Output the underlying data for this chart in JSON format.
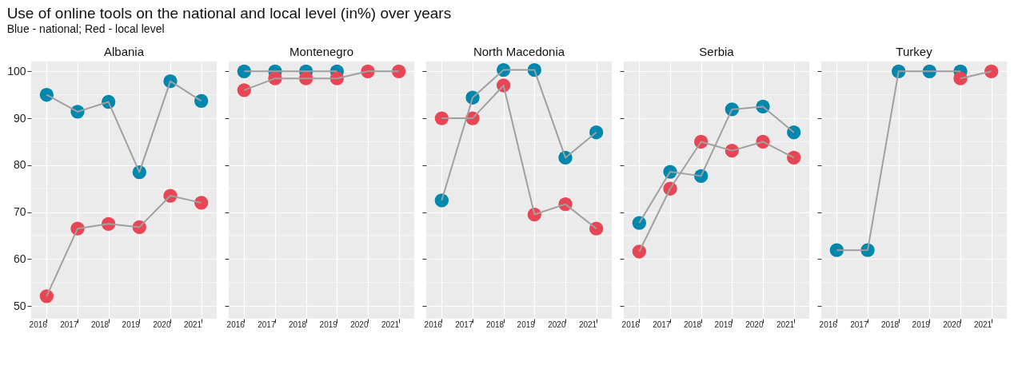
{
  "chart_data": [
    {
      "type": "line",
      "title": "Albania",
      "annotations": [
        "Use of online tools on the national and local level (in%) over years",
        "Blue - national; Red - local level"
      ],
      "categories": [
        "2016",
        "2017",
        "2018",
        "2019",
        "2020",
        "2021"
      ],
      "ylim": [
        47.3,
        102.1
      ],
      "yticks": [
        50,
        {
          "value": 55,
          "label": null
        },
        60,
        {
          "value": 65,
          "label": null
        },
        70,
        {
          "value": 75,
          "label": null
        },
        80,
        {
          "value": 85,
          "label": null
        },
        90,
        {
          "value": 95,
          "label": null
        },
        100
      ],
      "grid": true,
      "marker": "circle",
      "legend": false,
      "series": [
        {
          "color": "#0087ad",
          "values": [
            95.0,
            91.4,
            93.5,
            78.5,
            97.9,
            93.7
          ]
        },
        {
          "color": "#e84655",
          "values": [
            52.1,
            66.5,
            67.5,
            66.8,
            73.5,
            72.0
          ]
        }
      ]
    },
    {
      "type": "line",
      "title": "Montenegro",
      "categories": [
        "2016",
        "2017",
        "2018",
        "2019",
        "2020",
        "2021"
      ],
      "ylim": [
        47.3,
        102.1
      ],
      "yticks": [
        50,
        {
          "value": 55,
          "label": null
        },
        60,
        {
          "value": 65,
          "label": null
        },
        70,
        {
          "value": 75,
          "label": null
        },
        80,
        {
          "value": 85,
          "label": null
        },
        90,
        {
          "value": 95,
          "label": null
        },
        100
      ],
      "tick_labels": "x",
      "grid": true,
      "marker": "circle",
      "legend": false,
      "series": [
        {
          "color": "#0087ad",
          "values": [
            100,
            100,
            100,
            100,
            null,
            null
          ]
        },
        {
          "color": "#e84655",
          "values": [
            96.0,
            98.5,
            98.5,
            98.5,
            100,
            100
          ]
        }
      ]
    },
    {
      "type": "line",
      "title": "North Macedonia",
      "categories": [
        "2016",
        "2017",
        "2018",
        "2019",
        "2020",
        "2021"
      ],
      "ylim": [
        47.3,
        102.1
      ],
      "yticks": [
        50,
        {
          "value": 55,
          "label": null
        },
        60,
        {
          "value": 65,
          "label": null
        },
        70,
        {
          "value": 75,
          "label": null
        },
        80,
        {
          "value": 85,
          "label": null
        },
        90,
        {
          "value": 95,
          "label": null
        },
        100
      ],
      "tick_labels": "x",
      "grid": true,
      "marker": "circle",
      "legend": false,
      "series": [
        {
          "color": "#0087ad",
          "values": [
            72.5,
            94.4,
            100.3,
            100.3,
            81.6,
            87.0
          ]
        },
        {
          "color": "#e84655",
          "values": [
            90.0,
            90.0,
            97.0,
            69.5,
            71.7,
            66.5
          ]
        }
      ]
    },
    {
      "type": "line",
      "title": "Serbia",
      "categories": [
        "2016",
        "2017",
        "2018",
        "2019",
        "2020",
        "2021"
      ],
      "ylim": [
        47.3,
        102.1
      ],
      "yticks": [
        50,
        {
          "value": 55,
          "label": null
        },
        60,
        {
          "value": 65,
          "label": null
        },
        70,
        {
          "value": 75,
          "label": null
        },
        80,
        {
          "value": 85,
          "label": null
        },
        90,
        {
          "value": 95,
          "label": null
        },
        100
      ],
      "tick_labels": "x",
      "grid": true,
      "marker": "circle",
      "legend": false,
      "series": [
        {
          "color": "#0087ad",
          "values": [
            67.7,
            78.6,
            77.7,
            91.9,
            92.5,
            87.0
          ]
        },
        {
          "color": "#e84655",
          "values": [
            61.6,
            75.0,
            85.0,
            83.1,
            85.0,
            81.6
          ]
        }
      ]
    },
    {
      "type": "line",
      "title": "Turkey",
      "categories": [
        "2016",
        "2017",
        "2018",
        "2019",
        "2020",
        "2021"
      ],
      "ylim": [
        47.3,
        102.1
      ],
      "yticks": [
        50,
        {
          "value": 55,
          "label": null
        },
        60,
        {
          "value": 65,
          "label": null
        },
        70,
        {
          "value": 75,
          "label": null
        },
        80,
        {
          "value": 85,
          "label": null
        },
        90,
        {
          "value": 95,
          "label": null
        },
        100
      ],
      "tick_labels": "x",
      "grid": true,
      "marker": "circle",
      "legend": false,
      "series": [
        {
          "color": "#0087ad",
          "values": [
            61.9,
            61.9,
            100,
            100,
            100,
            null
          ]
        },
        {
          "color": "#e84655",
          "values": [
            null,
            null,
            null,
            null,
            98.5,
            100
          ]
        }
      ]
    }
  ]
}
